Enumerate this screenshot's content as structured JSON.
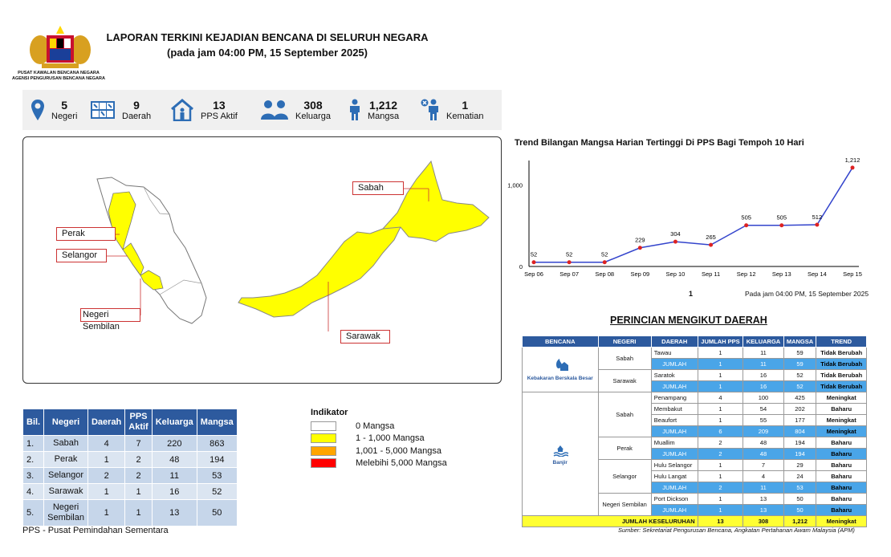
{
  "header": {
    "title_line1": "LAPORAN TERKINI KEJADIAN BENCANA DI SELURUH NEGARA",
    "title_line2": "(pada jam 04:00 PM, 15 September 2025)",
    "org_line1": "PUSAT KAWALAN BENCANA NEGARA",
    "org_line2": "AGENSI PENGURUSAN BENCANA NEGARA"
  },
  "stats": [
    {
      "icon": "location-pin-icon",
      "value": "5",
      "label": "Negeri"
    },
    {
      "icon": "map-grid-icon",
      "value": "9",
      "label": "Daerah"
    },
    {
      "icon": "shelter-icon",
      "value": "13",
      "label": "PPS Aktif"
    },
    {
      "icon": "family-icon",
      "value": "308",
      "label": "Keluarga"
    },
    {
      "icon": "person-icon",
      "value": "1,212",
      "label": "Mangsa"
    },
    {
      "icon": "deceased-person-icon",
      "value": "1",
      "label": "Kematian"
    }
  ],
  "map": {
    "labels": {
      "sabah": "Sabah",
      "sarawak": "Sarawak",
      "perak": "Perak",
      "selangor": "Selangor",
      "negeri_sembilan": "Negeri Sembilan"
    },
    "colors": {
      "affected": "#ffff00",
      "outline": "#888888"
    }
  },
  "chart": {
    "title": "Trend Bilangan Mangsa Harian Tertinggi Di PPS Bagi Tempoh 10 Hari",
    "note": "Pada jam 04:00 PM, 15 September 2025",
    "page": "1"
  },
  "chart_data": {
    "type": "line",
    "x": [
      "Sep 06",
      "Sep 07",
      "Sep 08",
      "Sep 09",
      "Sep 10",
      "Sep 11",
      "Sep 12",
      "Sep 13",
      "Sep 14",
      "Sep 15"
    ],
    "values": [
      52,
      52,
      52,
      229,
      304,
      265,
      505,
      505,
      512,
      1212
    ],
    "value_labels": [
      "52",
      "52",
      "52",
      "229",
      "304",
      "265",
      "505",
      "505",
      "512",
      "1,212"
    ],
    "yticks": [
      "0",
      "1,000"
    ],
    "ylim": [
      0,
      1300
    ],
    "line_color": "#3344cc",
    "marker_color": "#dd2222"
  },
  "detail": {
    "title": "PERINCIAN MENGIKUT DAERAH",
    "headers": [
      "BENCANA",
      "NEGERI",
      "DAERAH",
      "JUMLAH PPS",
      "KELUARGA",
      "MANGSA",
      "TREND"
    ],
    "disasters": [
      "Kebakaran Berskala Besar",
      "Banjir"
    ],
    "states": [
      "Sabah",
      "Sarawak",
      "Sabah",
      "Perak",
      "Selangor",
      "Negeri Sembilan"
    ],
    "rows": [
      {
        "d": "Tawau",
        "p": "1",
        "k": "11",
        "m": "59",
        "t": "Tidak Berubah",
        "sum": false
      },
      {
        "d": "JUMLAH",
        "p": "1",
        "k": "11",
        "m": "59",
        "t": "Tidak Berubah",
        "sum": true
      },
      {
        "d": "Saratok",
        "p": "1",
        "k": "16",
        "m": "52",
        "t": "Tidak Berubah",
        "sum": false
      },
      {
        "d": "JUMLAH",
        "p": "1",
        "k": "16",
        "m": "52",
        "t": "Tidak Berubah",
        "sum": true
      },
      {
        "d": "Penampang",
        "p": "4",
        "k": "100",
        "m": "425",
        "t": "Meningkat",
        "sum": false
      },
      {
        "d": "Membakut",
        "p": "1",
        "k": "54",
        "m": "202",
        "t": "Baharu",
        "sum": false
      },
      {
        "d": "Beaufort",
        "p": "1",
        "k": "55",
        "m": "177",
        "t": "Meningkat",
        "sum": false
      },
      {
        "d": "JUMLAH",
        "p": "6",
        "k": "209",
        "m": "804",
        "t": "Meningkat",
        "sum": true
      },
      {
        "d": "Muallim",
        "p": "2",
        "k": "48",
        "m": "194",
        "t": "Baharu",
        "sum": false
      },
      {
        "d": "JUMLAH",
        "p": "2",
        "k": "48",
        "m": "194",
        "t": "Baharu",
        "sum": true
      },
      {
        "d": "Hulu Selangor",
        "p": "1",
        "k": "7",
        "m": "29",
        "t": "Baharu",
        "sum": false
      },
      {
        "d": "Hulu Langat",
        "p": "1",
        "k": "4",
        "m": "24",
        "t": "Baharu",
        "sum": false
      },
      {
        "d": "JUMLAH",
        "p": "2",
        "k": "11",
        "m": "53",
        "t": "Baharu",
        "sum": true
      },
      {
        "d": "Port Dickson",
        "p": "1",
        "k": "13",
        "m": "50",
        "t": "Baharu",
        "sum": false
      },
      {
        "d": "JUMLAH",
        "p": "1",
        "k": "13",
        "m": "50",
        "t": "Baharu",
        "sum": true
      }
    ],
    "grand": {
      "label": "JUMLAH KESELURUHAN",
      "p": "13",
      "k": "308",
      "m": "1,212",
      "t": "Meningkat"
    },
    "source": "Sumber: Sekretariat Pengurusan Bencana, Angkatan Pertahanan Awam Malaysia (APM)"
  },
  "summary": {
    "headers": [
      "Bil.",
      "Negeri",
      "Daerah",
      "PPS Aktif",
      "Keluarga",
      "Mangsa"
    ],
    "rows": [
      [
        "1.",
        "Sabah",
        "4",
        "7",
        "220",
        "863"
      ],
      [
        "2.",
        "Perak",
        "1",
        "2",
        "48",
        "194"
      ],
      [
        "3.",
        "Selangor",
        "2",
        "2",
        "11",
        "53"
      ],
      [
        "4.",
        "Sarawak",
        "1",
        "1",
        "16",
        "52"
      ],
      [
        "5.",
        "Negeri Sembilan",
        "1",
        "1",
        "13",
        "50"
      ]
    ],
    "note": "PPS - Pusat Pemindahan Sementara"
  },
  "legend": {
    "title": "Indikator",
    "items": [
      {
        "label": "0 Mangsa",
        "color": "#ffffff"
      },
      {
        "label": "1 - 1,000 Mangsa",
        "color": "#ffff00"
      },
      {
        "label": "1,001 - 5,000 Mangsa",
        "color": "#ffa500"
      },
      {
        "label": "Melebihi 5,000 Mangsa",
        "color": "#ff0000"
      }
    ]
  }
}
